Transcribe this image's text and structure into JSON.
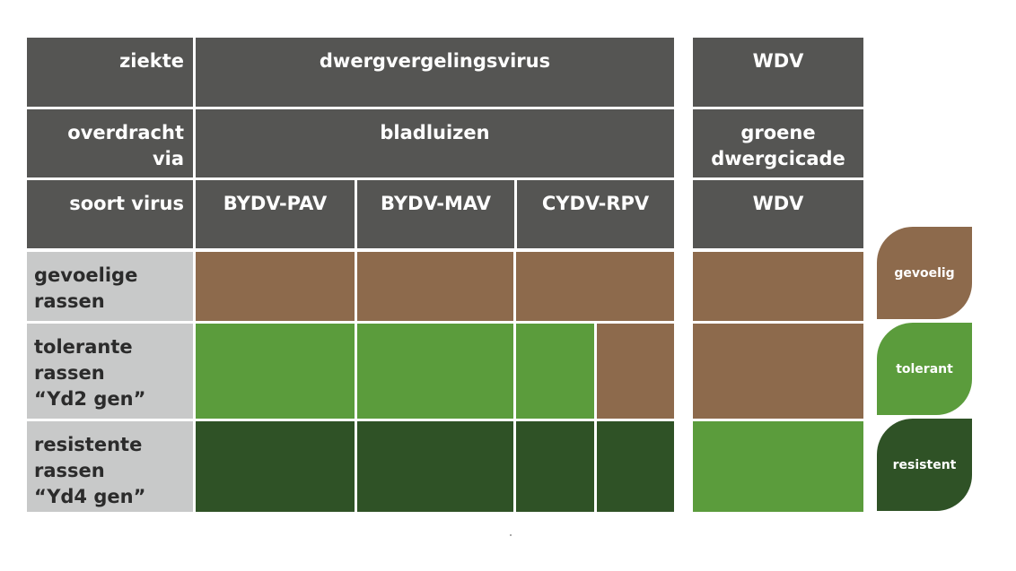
{
  "headers": {
    "ziekte": "ziekte",
    "dwergvergelingsvirus": "dwergvergelingsvirus",
    "wdv_top": "WDV",
    "overdracht": "overdracht\nvia",
    "bladluizen": "bladluizen",
    "groene": "groene\ndwergcicade",
    "soort_virus": "soort virus",
    "bydv_pav": "BYDV-PAV",
    "bydv_mav": "BYDV-MAV",
    "cydv_rpv": "CYDV-RPV",
    "wdv_sub": "WDV"
  },
  "rows": {
    "gevoelige": "gevoelige\nrassen",
    "tolerante": "tolerante\nrassen\n“Yd2 gen”",
    "resistente": "resistente\nrassen\n “Yd4 gen”"
  },
  "legend": {
    "gevoelig": "gevoelig",
    "tolerant": "tolerant",
    "resistent": "resistent"
  },
  "colors": {
    "header": "#555553",
    "row_label": "#c8c9c9",
    "gevoelig": "#8d6a4c",
    "tolerant": "#5b9c3c",
    "resistent": "#2f5226"
  }
}
